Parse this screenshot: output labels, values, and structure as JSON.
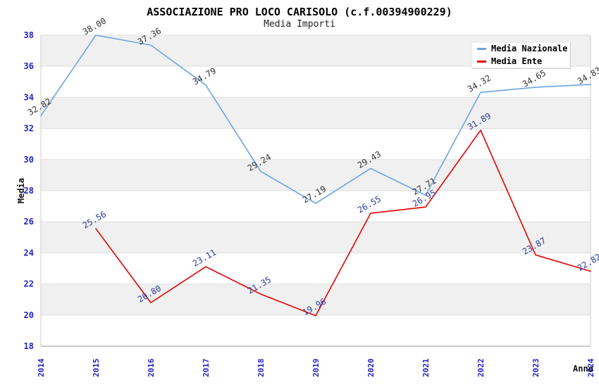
{
  "title": "ASSOCIAZIONE PRO LOCO CARISOLO (c.f.00394900229)",
  "subtitle": "Media Importi",
  "chart_data": {
    "type": "line",
    "x": [
      2014,
      2015,
      2016,
      2017,
      2018,
      2019,
      2020,
      2021,
      2022,
      2023,
      2024
    ],
    "xlabel": "Anno",
    "ylabel": "Media",
    "ylim": [
      18,
      38
    ],
    "ytick_step": 2,
    "grid": "horizontal-bands",
    "legend_position": "top-right",
    "value_label_decimals": 2,
    "tick_color": "#2222cc",
    "band_color": "#f0f0f0",
    "gridline_color": "#dedede",
    "plot_border_color": "#cccccc",
    "axis_line_color": "#999999",
    "series": [
      {
        "name": "Media Nazionale",
        "color": "#6ca4e0",
        "label_color": "#333333",
        "values": [
          32.82,
          38.0,
          37.36,
          34.79,
          29.24,
          27.19,
          29.43,
          27.71,
          34.32,
          34.65,
          34.83
        ]
      },
      {
        "name": "Media Ente",
        "color": "#e60000",
        "label_color": "#2d3a99",
        "values": [
          null,
          25.56,
          20.8,
          23.11,
          21.35,
          19.96,
          26.55,
          26.95,
          31.89,
          23.87,
          22.82
        ]
      }
    ]
  }
}
